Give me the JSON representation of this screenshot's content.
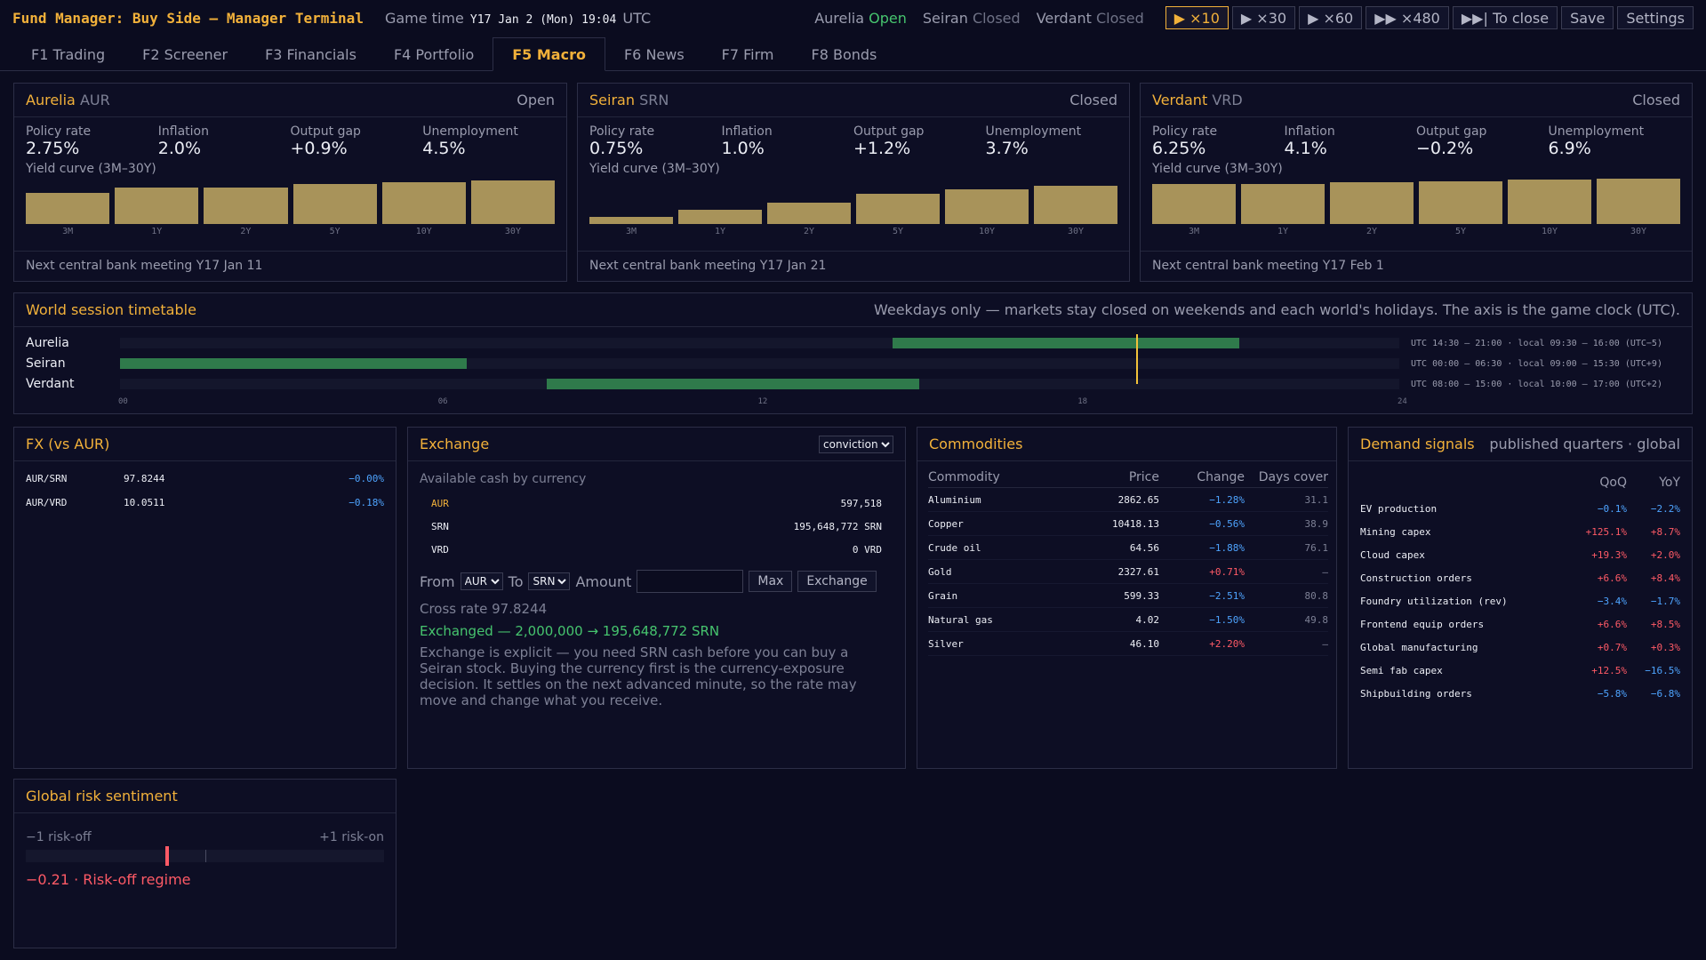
{
  "app": {
    "title": "Fund Manager: Buy Side — Manager Terminal",
    "game_time_label": "Game time",
    "game_time": "Y17 Jan 2 (Mon) 19:04",
    "game_time_tz": "UTC"
  },
  "markets": [
    {
      "name": "Aurelia",
      "state": "Open"
    },
    {
      "name": "Seiran",
      "state": "Closed"
    },
    {
      "name": "Verdant",
      "state": "Closed"
    }
  ],
  "toolbar": {
    "speed_x10": "▶ ×10",
    "speed_x30": "▶ ×30",
    "speed_x60": "▶ ×60",
    "speed_x480": "▶▶ ×480",
    "to_close": "▶▶| To close",
    "save": "Save",
    "settings": "Settings"
  },
  "tabs": [
    {
      "label": "F1 Trading"
    },
    {
      "label": "F2 Screener"
    },
    {
      "label": "F3 Financials"
    },
    {
      "label": "F4 Portfolio"
    },
    {
      "label": "F5 Macro"
    },
    {
      "label": "F6 News"
    },
    {
      "label": "F7 Firm"
    },
    {
      "label": "F8 Bonds"
    }
  ],
  "countries": [
    {
      "name": "Aurelia",
      "code": "AUR",
      "status": "Open",
      "stats": [
        {
          "label": "Policy rate",
          "value": "2.75%",
          "tone": "white"
        },
        {
          "label": "Inflation",
          "value": "2.0%",
          "tone": "white"
        },
        {
          "label": "Output gap",
          "value": "+0.9%",
          "tone": "white"
        },
        {
          "label": "Unemployment",
          "value": "4.5%",
          "tone": "white"
        }
      ],
      "yield_label": "Yield curve (3M–30Y)",
      "yield_tenors": [
        "3M",
        "1Y",
        "2Y",
        "5Y",
        "10Y",
        "30Y"
      ],
      "yield_values": [
        2.72,
        3.12,
        3.18,
        3.45,
        3.62,
        3.79
      ],
      "meeting": "Next central bank meeting Y17 Jan 11"
    },
    {
      "name": "Seiran",
      "code": "SRN",
      "status": "Closed",
      "stats": [
        {
          "label": "Policy rate",
          "value": "0.75%",
          "tone": "white"
        },
        {
          "label": "Inflation",
          "value": "1.0%",
          "tone": "white"
        },
        {
          "label": "Output gap",
          "value": "+1.2%",
          "tone": "white"
        },
        {
          "label": "Unemployment",
          "value": "3.7%",
          "tone": "white"
        }
      ],
      "yield_label": "Yield curve (3M–30Y)",
      "yield_tenors": [
        "3M",
        "1Y",
        "2Y",
        "5Y",
        "10Y",
        "30Y"
      ],
      "yield_values": [
        0.62,
        1.22,
        1.82,
        2.6,
        3.02,
        3.32
      ],
      "meeting": "Next central bank meeting Y17 Jan 21"
    },
    {
      "name": "Verdant",
      "code": "VRD",
      "status": "Closed",
      "stats": [
        {
          "label": "Policy rate",
          "value": "6.25%",
          "tone": "white"
        },
        {
          "label": "Inflation",
          "value": "4.1%",
          "tone": "red"
        },
        {
          "label": "Output gap",
          "value": "−0.2%",
          "tone": "blue"
        },
        {
          "label": "Unemployment",
          "value": "6.9%",
          "tone": "white"
        }
      ],
      "yield_label": "Yield curve (3M–30Y)",
      "yield_tenors": [
        "3M",
        "1Y",
        "2Y",
        "5Y",
        "10Y",
        "30Y"
      ],
      "yield_values": [
        3.5,
        3.45,
        3.6,
        3.72,
        3.82,
        3.95
      ],
      "meeting": "Next central bank meeting Y17 Feb 1"
    }
  ],
  "timetable": {
    "title": "World session timetable",
    "note": "Weekdays only — markets stay closed on weekends and each world's holidays. The axis is the game clock (UTC).",
    "now_hour": 19.07,
    "ticks": [
      "00",
      "06",
      "12",
      "18",
      "24"
    ],
    "rows": [
      {
        "name": "Aurelia",
        "start": 14.5,
        "end": 21.0,
        "info": "UTC 14:30 – 21:00  ·  local 09:30 – 16:00 (UTC−5)"
      },
      {
        "name": "Seiran",
        "start": 0.0,
        "end": 6.5,
        "info": "UTC 00:00 – 06:30  ·  local 09:00 – 15:30 (UTC+9)"
      },
      {
        "name": "Verdant",
        "start": 8.0,
        "end": 15.0,
        "info": "UTC 08:00 – 15:00  ·  local 10:00 – 17:00 (UTC+2)"
      }
    ]
  },
  "fx": {
    "title": "FX (vs AUR)",
    "rows": [
      {
        "pair": "AUR/SRN",
        "rate": "97.8244",
        "change": "−0.00%"
      },
      {
        "pair": "AUR/VRD",
        "rate": "10.0511",
        "change": "−0.18%"
      }
    ]
  },
  "exchange": {
    "title": "Exchange",
    "mode": "conviction",
    "cash_label": "Available cash by currency",
    "cash": [
      {
        "ccy": "AUR",
        "amount": "597,518"
      },
      {
        "ccy": "SRN",
        "amount": "195,648,772 SRN"
      },
      {
        "ccy": "VRD",
        "amount": "0 VRD"
      }
    ],
    "from_label": "From",
    "from_value": "AUR",
    "to_label": "To",
    "to_value": "SRN",
    "amount_label": "Amount",
    "amount_value": "",
    "max_label": "Max",
    "exchange_label": "Exchange",
    "cross_rate": "Cross rate 97.8244",
    "result": "Exchanged — 2,000,000 → 195,648,772 SRN",
    "help": "Exchange is explicit — you need SRN cash before you can buy a Seiran stock. Buying the currency first is the currency-exposure decision. It settles on the next advanced minute, so the rate may move and change what you receive."
  },
  "commodities": {
    "title": "Commodities",
    "headers": [
      "Commodity",
      "Price",
      "Change",
      "Days cover"
    ],
    "rows": [
      {
        "name": "Aluminium",
        "price": "2862.65",
        "change": "−1.28%",
        "cover": "31.1"
      },
      {
        "name": "Copper",
        "price": "10418.13",
        "change": "−0.56%",
        "cover": "38.9"
      },
      {
        "name": "Crude oil",
        "price": "64.56",
        "change": "−1.88%",
        "cover": "76.1"
      },
      {
        "name": "Gold",
        "price": "2327.61",
        "change": "+0.71%",
        "cover": "—"
      },
      {
        "name": "Grain",
        "price": "599.33",
        "change": "−2.51%",
        "cover": "80.8"
      },
      {
        "name": "Natural gas",
        "price": "4.02",
        "change": "−1.50%",
        "cover": "49.8"
      },
      {
        "name": "Silver",
        "price": "46.10",
        "change": "+2.20%",
        "cover": "—"
      }
    ]
  },
  "demand": {
    "title": "Demand signals",
    "subtitle": "published quarters · global",
    "headers": [
      "QoQ",
      "YoY"
    ],
    "rows": [
      {
        "name": "EV production",
        "qoq": "−0.1%",
        "yoy": "−2.2%"
      },
      {
        "name": "Mining capex",
        "qoq": "+125.1%",
        "yoy": "+8.7%"
      },
      {
        "name": "Cloud capex",
        "qoq": "+19.3%",
        "yoy": "+2.0%"
      },
      {
        "name": "Construction orders",
        "qoq": "+6.6%",
        "yoy": "+8.4%"
      },
      {
        "name": "Foundry utilization (rev)",
        "qoq": "−3.4%",
        "yoy": "−1.7%"
      },
      {
        "name": "Frontend equip orders",
        "qoq": "+6.6%",
        "yoy": "+8.5%"
      },
      {
        "name": "Global manufacturing",
        "qoq": "+0.7%",
        "yoy": "+0.3%"
      },
      {
        "name": "Semi fab capex",
        "qoq": "+12.5%",
        "yoy": "−16.5%"
      },
      {
        "name": "Shipbuilding orders",
        "qoq": "−5.8%",
        "yoy": "−6.8%"
      }
    ]
  },
  "risk": {
    "title": "Global risk sentiment",
    "left_label": "−1 risk-off",
    "right_label": "+1 risk-on",
    "value": -0.21,
    "readout": "−0.21 · Risk-off regime"
  },
  "colors": {
    "accent": "#f2b13a",
    "positive": "#ff5a66",
    "negative": "#4ea4ff",
    "open": "#46c46e",
    "yield_bar": "#a8935a"
  }
}
